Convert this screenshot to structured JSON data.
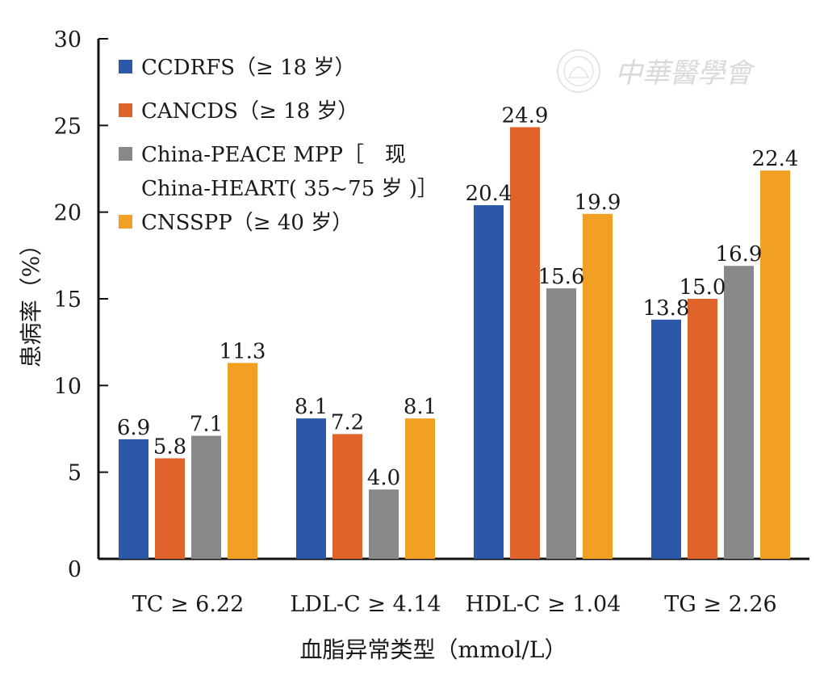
{
  "chart_data": {
    "type": "bar",
    "categories": [
      "TC ≥ 6.22",
      "LDL-C ≥ 4.14",
      "HDL-C ≥ 1.04",
      "TG ≥ 2.26"
    ],
    "series": [
      {
        "name": "CCDRFS（≥ 18 岁）",
        "values": [
          6.9,
          8.1,
          20.4,
          13.8
        ],
        "color": "#2b58a8"
      },
      {
        "name": "CANCDS（≥ 18 岁）",
        "values": [
          5.8,
          7.2,
          24.9,
          15.0
        ],
        "color": "#e0632b"
      },
      {
        "name": "China-PEACE MPP［现 China-HEART(35~75 岁)］",
        "values": [
          7.1,
          4.0,
          15.6,
          16.9
        ],
        "color": "#88898b"
      },
      {
        "name": "CNSSPP（≥ 40 岁）",
        "values": [
          11.3,
          8.1,
          19.9,
          22.4
        ],
        "color": "#f2a023"
      }
    ],
    "legend_lines": [
      [
        "CCDRFS（≥ 18 岁）"
      ],
      [
        "CANCDS（≥ 18 岁）"
      ],
      [
        "China-PEACE MPP［　现",
        "China-HEART( 35~75 岁 )］"
      ],
      [
        "CNSSPP（≥ 40 岁）"
      ]
    ],
    "xlabel": "血脂异常类型（mmol/L）",
    "ylabel": "患病率（%）",
    "ylim": [
      0,
      30
    ],
    "yticks": [
      0,
      5,
      10,
      15,
      20,
      25,
      30
    ],
    "legend_position": "top-left",
    "grid": false
  },
  "watermark": {
    "text": "中華醫學會"
  }
}
